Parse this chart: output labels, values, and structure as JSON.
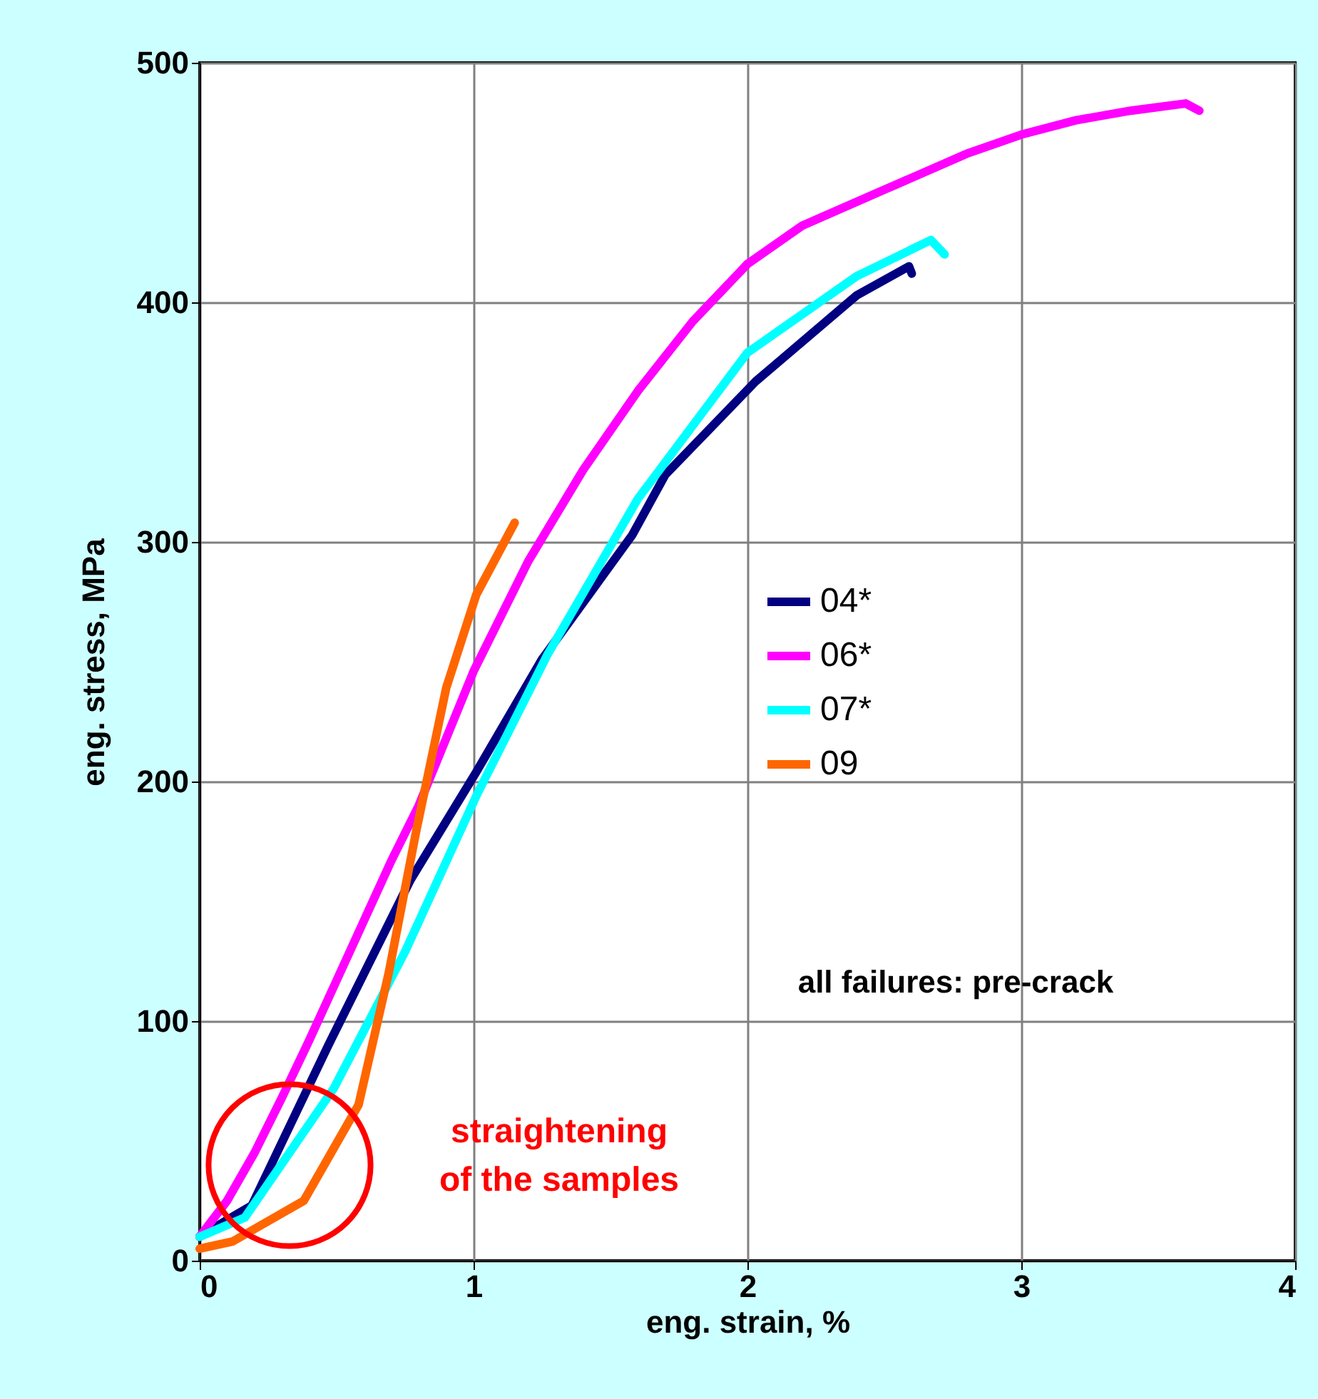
{
  "chart_data": {
    "type": "line",
    "xlabel": "eng. strain, %",
    "ylabel": "eng. stress, MPa",
    "xlim": [
      0,
      4
    ],
    "ylim": [
      0,
      500
    ],
    "xticks": [
      0,
      1,
      2,
      3,
      4
    ],
    "yticks": [
      0,
      100,
      200,
      300,
      400,
      500
    ],
    "grid": true,
    "legend": "right",
    "marker": "none",
    "line_style": "solid",
    "series": [
      {
        "name": "04*",
        "color": "#000080",
        "x": [
          0,
          0.1,
          0.19,
          0.47,
          0.77,
          1.01,
          1.25,
          1.58,
          1.7,
          2.03,
          2.4,
          2.59,
          2.6
        ],
        "values": [
          10,
          17,
          23,
          90,
          159,
          204,
          251,
          303,
          328,
          367,
          403,
          415,
          412
        ]
      },
      {
        "name": "06*",
        "color": "#ff00ff",
        "x": [
          0,
          0.1,
          0.2,
          0.3,
          0.4,
          0.5,
          0.6,
          0.7,
          0.8,
          1.0,
          1.2,
          1.4,
          1.6,
          1.8,
          2.0,
          2.2,
          2.5,
          2.8,
          3.0,
          3.2,
          3.4,
          3.6,
          3.65
        ],
        "values": [
          10,
          25,
          45,
          68,
          92,
          117,
          142,
          167,
          190,
          246,
          292,
          330,
          363,
          392,
          416,
          432,
          447,
          462,
          470,
          476,
          480,
          483,
          480
        ]
      },
      {
        "name": "07*",
        "color": "#00ffff",
        "x": [
          0,
          0.165,
          0.49,
          0.75,
          1.01,
          1.27,
          1.6,
          2.0,
          2.4,
          2.67,
          2.72
        ],
        "values": [
          10,
          18,
          72,
          129,
          194,
          253,
          318,
          379,
          411,
          426,
          420
        ]
      },
      {
        "name": "09",
        "color": "#ff6600",
        "x": [
          0,
          0.12,
          0.38,
          0.58,
          0.69,
          0.79,
          0.9,
          1.01,
          1.15
        ],
        "values": [
          5,
          8,
          25,
          65,
          120,
          179,
          239,
          278,
          308
        ]
      }
    ],
    "annotations": [
      "straightening of the samples",
      "all failures: pre-crack"
    ]
  }
}
